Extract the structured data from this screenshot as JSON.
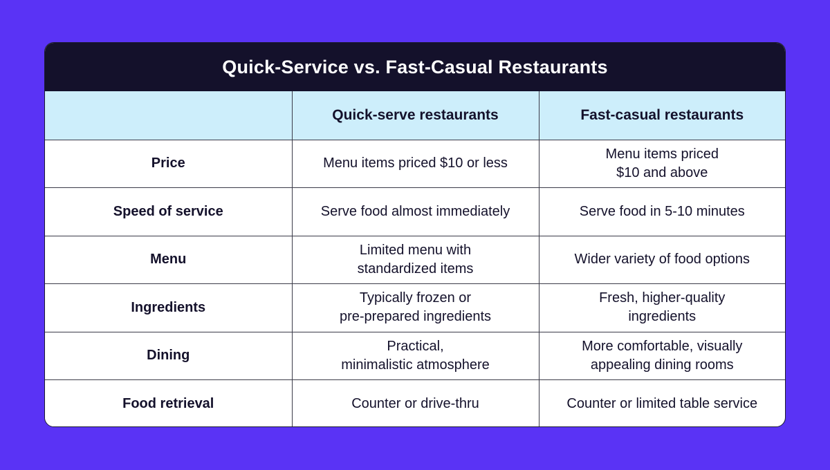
{
  "title": "Quick-Service vs. Fast-Casual Restaurants",
  "columns": [
    "",
    "Quick-serve restaurants",
    "Fast-casual restaurants"
  ],
  "rows": [
    {
      "label": "Price",
      "quick": [
        "Menu items priced $10 or less"
      ],
      "fast": [
        "Menu items priced",
        "$10 and above"
      ]
    },
    {
      "label": "Speed of service",
      "quick": [
        "Serve food almost immediately"
      ],
      "fast": [
        "Serve food in 5-10 minutes"
      ]
    },
    {
      "label": "Menu",
      "quick": [
        "Limited menu with",
        "standardized items"
      ],
      "fast": [
        "Wider variety of food options"
      ]
    },
    {
      "label": "Ingredients",
      "quick": [
        "Typically frozen or",
        "pre-prepared ingredients"
      ],
      "fast": [
        "Fresh, higher-quality",
        "ingredients"
      ]
    },
    {
      "label": "Dining",
      "quick": [
        "Practical,",
        "minimalistic atmosphere"
      ],
      "fast": [
        "More comfortable, visually",
        "appealing dining rooms"
      ]
    },
    {
      "label": "Food retrieval",
      "quick": [
        "Counter or drive-thru"
      ],
      "fast": [
        "Counter or limited table service"
      ]
    }
  ],
  "colors": {
    "background": "#5a33f5",
    "title_bar": "#14112b",
    "header_row": "#cdeefb"
  }
}
